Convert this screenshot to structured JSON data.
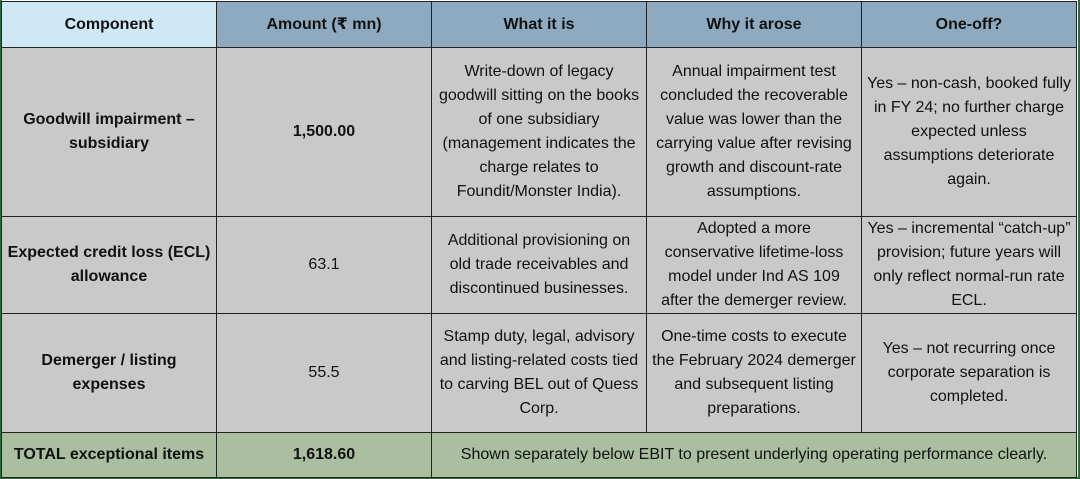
{
  "table": {
    "headers": [
      "Component",
      "Amount (₹ mn)",
      "What it is",
      "Why it arose",
      "One-off?"
    ],
    "rows": [
      {
        "component": "Goodwill impairment – subsidiary",
        "amount": "1,500.00",
        "what": "Write-down of legacy goodwill sitting on the books of one subsidiary (management indicates the charge relates to Foundit/Monster India).",
        "why": "Annual impairment test concluded the recoverable value was lower than the carrying value after revising growth and discount-rate assumptions.",
        "oneoff": "Yes – non-cash, booked fully in FY 24; no further charge expected unless assumptions deteriorate again."
      },
      {
        "component": "Expected credit loss (ECL) allowance",
        "amount": "63.1",
        "what": "Additional provisioning on old trade receivables and discontinued businesses.",
        "why": "Adopted a more conservative lifetime-loss model under Ind AS 109 after the demerger review.",
        "oneoff": "Yes – incremental “catch-up” provision; future years will only reflect normal-run rate ECL."
      },
      {
        "component": "Demerger / listing expenses",
        "amount": "55.5",
        "what": "Stamp duty, legal, advisory and listing-related costs tied to carving BEL out of Quess Corp.",
        "why": "One-time costs to execute the February 2024 demerger and subsequent listing preparations.",
        "oneoff": "Yes – not recurring once corporate separation is completed."
      }
    ],
    "total": {
      "label": "TOTAL exceptional items",
      "amount": "1,618.60",
      "note": "Shown separately below EBIT to present underlying operating performance clearly."
    }
  },
  "colors": {
    "header_first": "#cfe8f6",
    "header": "#8eaac0",
    "body": "#c9c9c9",
    "total": "#a9bfa0",
    "frame": "#2f6b3f"
  }
}
